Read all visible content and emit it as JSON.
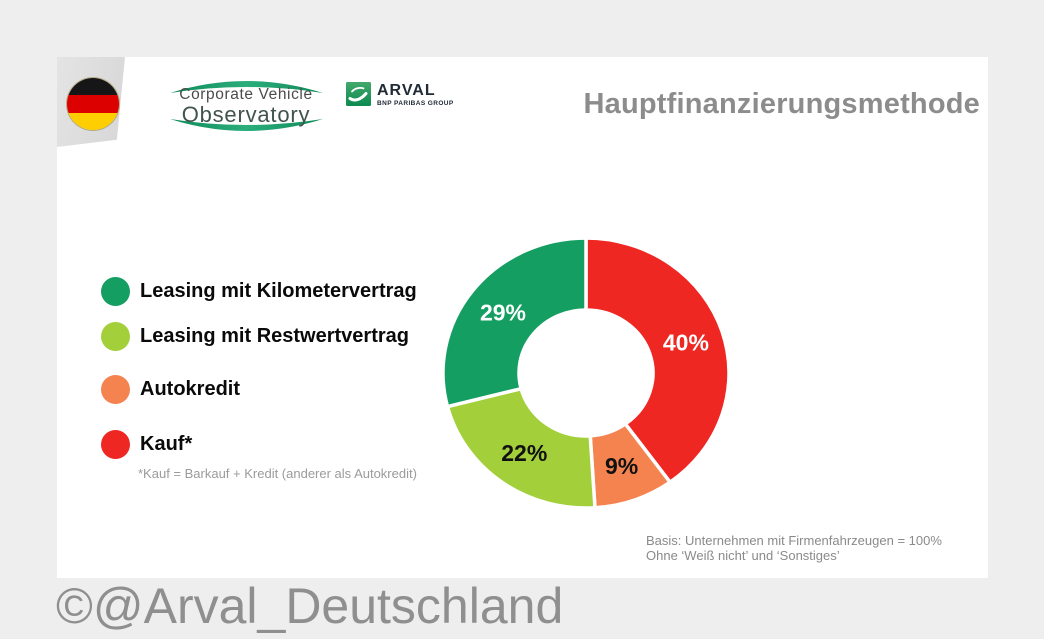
{
  "page": {
    "background": "#eeeeee",
    "watermark": "©@Arval_Deutschland"
  },
  "header": {
    "title": "Hauptfinanzierungsmethode",
    "cvo_logo": {
      "line1": "Corporate Vehicle",
      "line2": "Observatory"
    },
    "arval_logo": {
      "name": "ARVAL",
      "group": "BNP PARIBAS GROUP"
    },
    "country_flag": "germany",
    "flag_colors": [
      "#161616",
      "#dd0000",
      "#ffce00"
    ]
  },
  "legend": {
    "items": [
      {
        "label": "Leasing mit Kilometervertrag",
        "color": "#149e62"
      },
      {
        "label": "Leasing mit Restwertvertrag",
        "color": "#a3cf3b"
      },
      {
        "label": "Autokredit",
        "color": "#f5834f"
      },
      {
        "label": "Kauf*",
        "color": "#ee2723"
      }
    ],
    "footnote": "*Kauf = Barkauf + Kredit (anderer als Autokredit)"
  },
  "chart_data": {
    "type": "pie",
    "donut": true,
    "title": "Hauptfinanzierungsmethode",
    "unit": "%",
    "start_angle_deg": 0,
    "direction": "clockwise",
    "legend_position": "left",
    "slices": [
      {
        "label": "Kauf*",
        "value": 40,
        "color": "#ee2723",
        "label_color": "#ffffff"
      },
      {
        "label": "Autokredit",
        "value": 9,
        "color": "#f5834f",
        "label_color": "#111111"
      },
      {
        "label": "Leasing mit Restwertvertrag",
        "value": 22,
        "color": "#a3cf3b",
        "label_color": "#111111"
      },
      {
        "label": "Leasing mit Kilometervertrag",
        "value": 29,
        "color": "#149e62",
        "label_color": "#ffffff"
      }
    ]
  },
  "footer": {
    "basis_line1": "Basis: Unternehmen mit Firmenfahrzeugen = 100%",
    "basis_line2": "Ohne ‘Weiß nicht’ und ‘Sonstiges’"
  }
}
